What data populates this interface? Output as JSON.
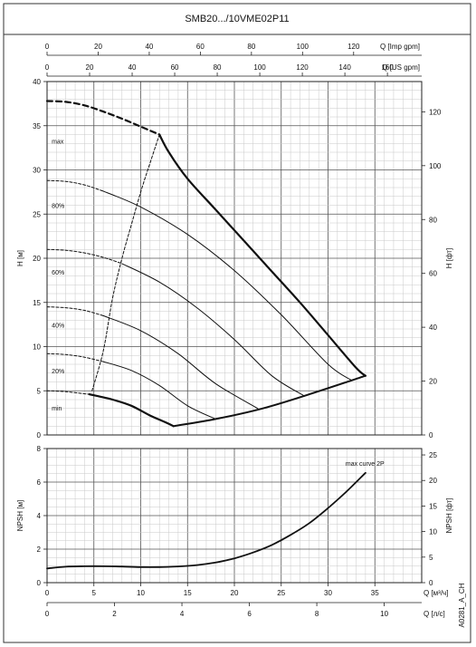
{
  "title": "SMB20.../10VME02P11",
  "code": "A0281_A_CH",
  "chart_data": [
    {
      "type": "line",
      "panel": "head",
      "xlabel": "Q [м³/ч]",
      "ylabel": "H [м]",
      "ylabel_right": "H [фт]",
      "top_axis_imp": {
        "label": "Q [Imp gpm]",
        "ticks": [
          "0",
          "20",
          "40",
          "60",
          "80",
          "100",
          "120"
        ]
      },
      "top_axis_us": {
        "label": "Q [US gpm]",
        "ticks": [
          "0",
          "20",
          "40",
          "60",
          "80",
          "100",
          "120",
          "140",
          "160"
        ]
      },
      "xlim": [
        0,
        40
      ],
      "ylim": [
        0,
        40
      ],
      "y_ticks": [
        "0",
        "5",
        "10",
        "15",
        "20",
        "25",
        "30",
        "35",
        "40"
      ],
      "y_right_ticks": [
        "0",
        "20",
        "40",
        "60",
        "80",
        "100",
        "120"
      ],
      "grid": true,
      "series": [
        {
          "name": "max",
          "style": "bold",
          "x": [
            12,
            13,
            15,
            18,
            21,
            24,
            27,
            30,
            33,
            34
          ],
          "y": [
            34.0,
            32.0,
            29.0,
            25.5,
            22.0,
            18.5,
            15.0,
            11.3,
            7.6,
            6.7
          ]
        },
        {
          "name": "max",
          "style": "dashed-bold",
          "x": [
            0,
            2,
            4,
            6,
            8,
            10,
            12
          ],
          "y": [
            37.8,
            37.7,
            37.3,
            36.6,
            35.8,
            34.9,
            34.0
          ]
        },
        {
          "name": "80%",
          "style": "dashed",
          "x": [
            0,
            2,
            4,
            6
          ],
          "y": [
            28.8,
            28.7,
            28.3,
            27.6
          ]
        },
        {
          "name": "80%",
          "style": "thin",
          "x": [
            6,
            10,
            15,
            20,
            25,
            30,
            32.5
          ],
          "y": [
            27.6,
            25.8,
            22.7,
            18.6,
            13.6,
            8.0,
            6.2
          ]
        },
        {
          "name": "60%",
          "style": "dashed",
          "x": [
            0,
            2,
            4,
            6,
            8
          ],
          "y": [
            21.0,
            20.9,
            20.6,
            20.1,
            19.4
          ]
        },
        {
          "name": "60%",
          "style": "thin",
          "x": [
            8,
            12,
            16,
            20,
            24,
            27.5
          ],
          "y": [
            19.4,
            17.3,
            14.4,
            10.8,
            6.7,
            4.4
          ]
        },
        {
          "name": "40%",
          "style": "dashed",
          "x": [
            0,
            2,
            4,
            6
          ],
          "y": [
            14.5,
            14.4,
            14.1,
            13.5
          ]
        },
        {
          "name": "40%",
          "style": "thin",
          "x": [
            6,
            10,
            14,
            18,
            22.5
          ],
          "y": [
            13.5,
            11.8,
            9.2,
            5.8,
            3.0
          ]
        },
        {
          "name": "20%",
          "style": "dashed",
          "x": [
            0,
            2,
            4,
            6
          ],
          "y": [
            9.2,
            9.1,
            8.8,
            8.3
          ]
        },
        {
          "name": "20%",
          "style": "thin",
          "x": [
            6,
            9,
            12,
            15,
            18
          ],
          "y": [
            8.3,
            7.3,
            5.6,
            3.3,
            1.8
          ]
        },
        {
          "name": "min",
          "style": "dashed",
          "x": [
            0,
            2,
            4.5
          ],
          "y": [
            5.0,
            4.9,
            4.6
          ]
        },
        {
          "name": "min",
          "style": "bold",
          "x": [
            4.5,
            7,
            9,
            11,
            12.5,
            13.5
          ],
          "y": [
            4.6,
            4.0,
            3.3,
            2.2,
            1.5,
            1.0
          ]
        },
        {
          "name": "",
          "style": "system",
          "x": [
            13.5,
            18,
            23,
            28,
            34
          ],
          "y": [
            1.0,
            1.8,
            3.0,
            4.6,
            6.7
          ]
        },
        {
          "name": "",
          "style": "limit-dashed",
          "x": [
            4.8,
            6,
            7,
            8,
            9,
            10,
            11,
            12
          ],
          "y": [
            5.0,
            9.5,
            15.5,
            20.0,
            23.8,
            27.5,
            30.8,
            34.0
          ]
        }
      ],
      "annotations": [
        "max",
        "80%",
        "60%",
        "40%",
        "20%",
        "min"
      ]
    },
    {
      "type": "line",
      "panel": "npsh",
      "xlabel": "Q [м³/ч]",
      "xlabel_secondary": "Q [л/с]",
      "ylabel": "NPSH [м]",
      "ylabel_right": "NPSH [фт]",
      "xlim": [
        0,
        40
      ],
      "ylim": [
        0,
        8
      ],
      "x_ticks": [
        "0",
        "5",
        "10",
        "15",
        "20",
        "25",
        "30",
        "35"
      ],
      "x_ticks_ls": [
        "0",
        "2",
        "4",
        "6",
        "8",
        "10"
      ],
      "y_ticks": [
        "0",
        "2",
        "4",
        "6",
        "8"
      ],
      "y_right_ticks": [
        "0",
        "5",
        "10",
        "15",
        "20",
        "25"
      ],
      "grid": true,
      "series": [
        {
          "name": "max curve 2P",
          "x": [
            0,
            2,
            4,
            6,
            8,
            10,
            12,
            14,
            16,
            18,
            20,
            22,
            24,
            26,
            28,
            30,
            32,
            34
          ],
          "y": [
            0.85,
            0.95,
            0.98,
            0.98,
            0.96,
            0.93,
            0.93,
            0.97,
            1.05,
            1.2,
            1.45,
            1.8,
            2.25,
            2.85,
            3.55,
            4.45,
            5.45,
            6.55
          ]
        }
      ],
      "annotations": [
        "max curve 2P"
      ]
    }
  ]
}
